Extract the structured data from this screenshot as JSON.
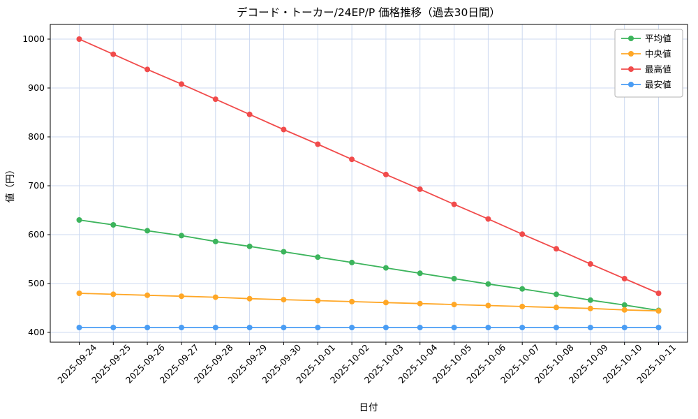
{
  "chart_data": {
    "type": "line",
    "title": "デコード・トーカー/24EP/P 価格推移（過去30日間）",
    "xlabel": "日付",
    "ylabel": "値（円）",
    "ylim": [
      380,
      1030
    ],
    "yticks": [
      400,
      500,
      600,
      700,
      800,
      900,
      1000
    ],
    "grid": true,
    "legend_position": "upper right",
    "categories": [
      "2025-09-24",
      "2025-09-25",
      "2025-09-26",
      "2025-09-27",
      "2025-09-28",
      "2025-09-29",
      "2025-09-30",
      "2025-10-01",
      "2025-10-02",
      "2025-10-03",
      "2025-10-04",
      "2025-10-05",
      "2025-10-06",
      "2025-10-07",
      "2025-10-08",
      "2025-10-09",
      "2025-10-10",
      "2025-10-11"
    ],
    "series": [
      {
        "name": "平均値",
        "color": "#3cb45c",
        "values": [
          630,
          620,
          608,
          598,
          586,
          576,
          565,
          554,
          543,
          532,
          521,
          510,
          499,
          489,
          478,
          466,
          456,
          445
        ]
      },
      {
        "name": "中央値",
        "color": "#ffa726",
        "values": [
          480,
          478,
          476,
          474,
          472,
          469,
          467,
          465,
          463,
          461,
          459,
          457,
          455,
          453,
          451,
          449,
          446,
          444
        ]
      },
      {
        "name": "最高値",
        "color": "#f14b4b",
        "values": [
          1000,
          969,
          938,
          908,
          877,
          846,
          815,
          785,
          754,
          723,
          693,
          662,
          632,
          601,
          571,
          540,
          510,
          480
        ]
      },
      {
        "name": "最安値",
        "color": "#4a9df4",
        "values": [
          410,
          410,
          410,
          410,
          410,
          410,
          410,
          410,
          410,
          410,
          410,
          410,
          410,
          410,
          410,
          410,
          410,
          410
        ]
      }
    ],
    "colors": {
      "plot_background": "#ffffff",
      "grid": "#ccd9f0",
      "axis": "#000000",
      "legend_border": "#b3b3b3",
      "legend_background": "#ffffff"
    }
  }
}
